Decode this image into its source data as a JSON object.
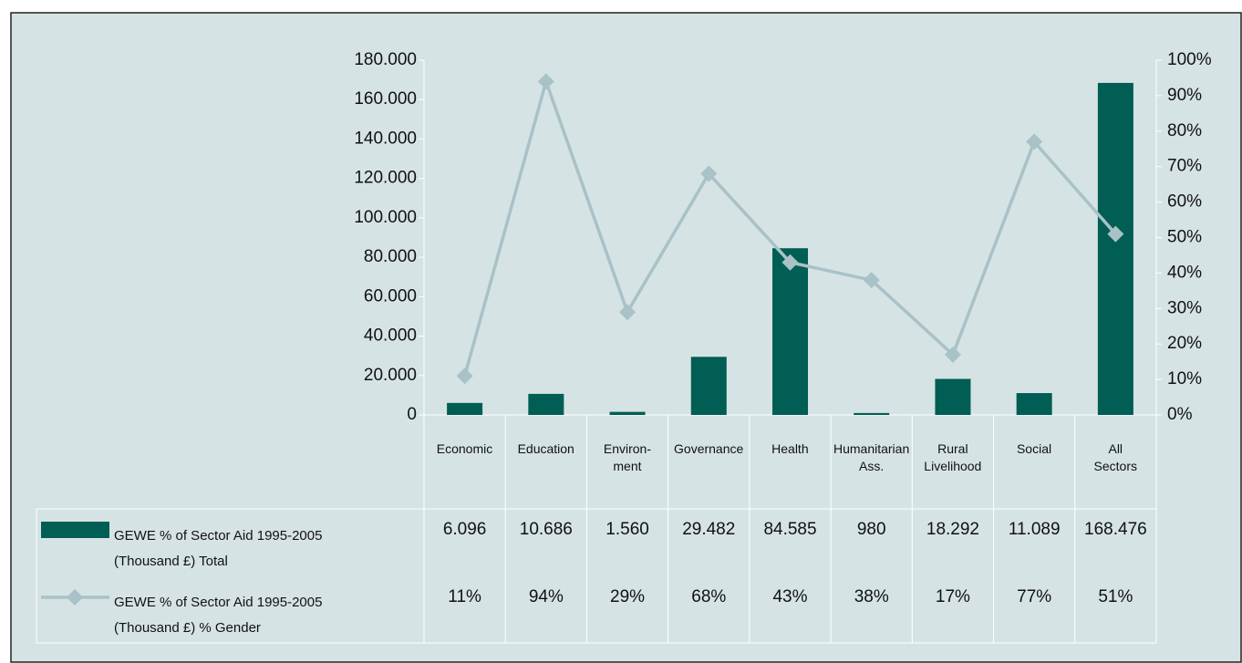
{
  "chart_data": {
    "type": "bar",
    "categories": [
      "Economic",
      "Education",
      "Environ-\nment",
      "Governance",
      "Health",
      "Humanitarian\nAss.",
      "Rural\nLivelihood",
      "Social",
      "All\nSectors"
    ],
    "series": [
      {
        "name": "GEWE % of Sector Aid 1995-2005\n(Thousand £) Total",
        "type": "bar",
        "color": "#005e54",
        "values": [
          6096,
          10686,
          1560,
          29482,
          84585,
          980,
          18292,
          11089,
          168476
        ],
        "value_labels": [
          "6.096",
          "10.686",
          "1.560",
          "29.482",
          "84.585",
          "980",
          "18.292",
          "11.089",
          "168.476"
        ]
      },
      {
        "name": "GEWE % of Sector Aid 1995-2005\n(Thousand £) % Gender",
        "type": "line",
        "axis": "y2",
        "color": "#a8c2c7",
        "values": [
          11,
          94,
          29,
          68,
          43,
          38,
          17,
          77,
          51
        ],
        "value_labels": [
          "11%",
          "94%",
          "29%",
          "68%",
          "43%",
          "38%",
          "17%",
          "77%",
          "51%"
        ]
      }
    ],
    "ylim": [
      0,
      180000
    ],
    "yticks": [
      0,
      {
        "value": 20000,
        "label": "20.000"
      },
      {
        "value": 40000,
        "label": "40.000"
      },
      {
        "value": 60000,
        "label": "60.000"
      },
      {
        "value": 80000,
        "label": "80.000"
      },
      {
        "value": 100000,
        "label": "100.000"
      },
      {
        "value": 120000,
        "label": "120.000"
      },
      {
        "value": 140000,
        "label": "140.000"
      },
      {
        "value": 160000,
        "label": "160.000"
      },
      {
        "value": 180000,
        "label": "180.000"
      }
    ],
    "y2lim": [
      0,
      100
    ],
    "y2ticks": [
      {
        "value": 0,
        "label": "0%"
      },
      {
        "value": 10,
        "label": "10%"
      },
      {
        "value": 20,
        "label": "20%"
      },
      {
        "value": 30,
        "label": "30%"
      },
      {
        "value": 40,
        "label": "40%"
      },
      {
        "value": 50,
        "label": "50%"
      },
      {
        "value": 60,
        "label": "60%"
      },
      {
        "value": 70,
        "label": "70%"
      },
      {
        "value": 80,
        "label": "80%"
      },
      {
        "value": 90,
        "label": "90%"
      },
      {
        "value": 100,
        "label": "100%"
      }
    ]
  }
}
